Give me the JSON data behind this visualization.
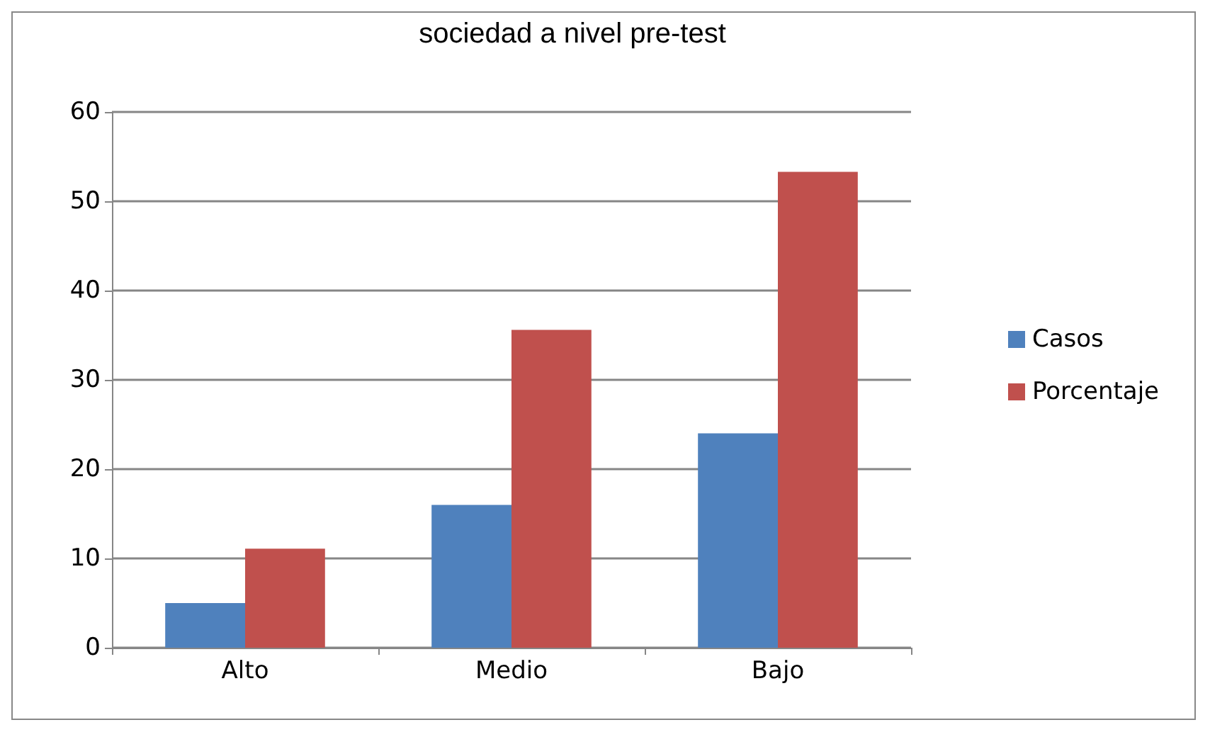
{
  "chart_data": {
    "type": "bar",
    "title": "sociedad a nivel pre-test",
    "categories": [
      "Alto",
      "Medio",
      "Bajo"
    ],
    "series": [
      {
        "name": "Casos",
        "color": "#4f81bd",
        "values": [
          5,
          16,
          24
        ]
      },
      {
        "name": "Porcentaje",
        "color": "#c0504d",
        "values": [
          11.1,
          35.6,
          53.3
        ]
      }
    ],
    "ylim": [
      0,
      60
    ],
    "yticks": [
      0,
      10,
      20,
      30,
      40,
      50,
      60
    ],
    "grid": "y",
    "legend": "right"
  }
}
